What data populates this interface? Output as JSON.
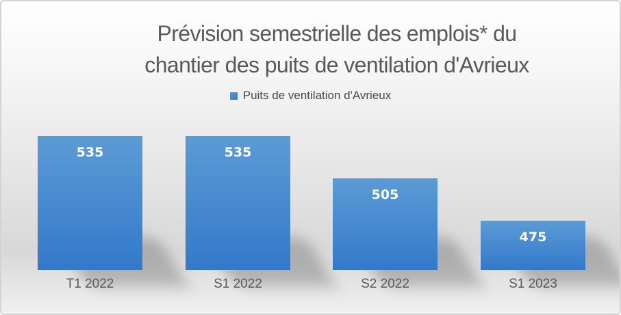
{
  "window": {
    "border_color": "#d3d3d3",
    "background_top": "#ffffff",
    "background_bottom": "#d8d8d8"
  },
  "chart": {
    "title_line1": "Prévision semestrielle des emplois* du",
    "title_line2": "chantier des puits de ventilation d'Avrieux",
    "title_color": "#595959"
  },
  "chart_data": {
    "type": "bar",
    "title": "Prévision semestrielle des emplois* du chantier des puits de ventilation d'Avrieux",
    "categories": [
      "T1 2022",
      "S1 2022",
      "S2 2022",
      "S1 2023"
    ],
    "series": [
      {
        "name": "Puits de ventilation d'Avrieux",
        "values": [
          535,
          535,
          505,
          475
        ],
        "color_top": "#5b9bd5",
        "color_bottom": "#3379ca"
      }
    ],
    "data_labels": [
      "535",
      "535",
      "505",
      "475"
    ],
    "data_label_color": "#ffffff",
    "xlabel": "",
    "ylabel": "",
    "ylim": [
      440,
      560
    ],
    "grid": false,
    "y_axis_visible": false,
    "legend_position": "top-center",
    "axis_label_color": "#595959"
  }
}
